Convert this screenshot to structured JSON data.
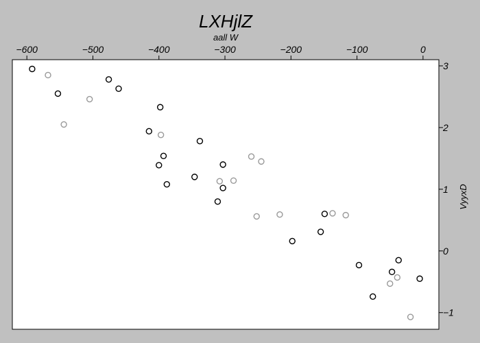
{
  "chart_data": {
    "type": "scatter",
    "title": "LXHjlZ",
    "xlabel": "aall W",
    "ylabel": "VyyxD",
    "xlim": [
      -622,
      24
    ],
    "ylim": [
      -1.27,
      3.1
    ],
    "x_ticks": [
      -600,
      -500,
      -400,
      -300,
      -200,
      -100,
      0
    ],
    "x_tick_labels": [
      "−600",
      "−500",
      "−400",
      "−300",
      "−200",
      "−100",
      "0"
    ],
    "y_ticks": [
      3,
      2,
      1,
      0,
      -1
    ],
    "y_tick_labels": [
      "3",
      "2",
      "1",
      "0",
      "−1"
    ],
    "x_axis_position": "top",
    "y_axis_position": "right",
    "grid": false,
    "legend": "none",
    "colors": {
      "background": "#c0c0c0",
      "plot_area": "#ffffff",
      "series_dark": "#000000",
      "series_light": "#999999"
    },
    "series": [
      {
        "color": "#000000",
        "points": [
          [
            -592,
            2.95
          ],
          [
            -553,
            2.55
          ],
          [
            -476,
            2.78
          ],
          [
            -461,
            2.63
          ],
          [
            -398,
            2.33
          ],
          [
            -415,
            1.94
          ],
          [
            -393,
            1.54
          ],
          [
            -400,
            1.39
          ],
          [
            -388,
            1.08
          ],
          [
            -338,
            1.78
          ],
          [
            -346,
            1.2
          ],
          [
            -303,
            1.4
          ],
          [
            -303,
            1.02
          ],
          [
            -311,
            0.8
          ],
          [
            -149,
            0.6
          ],
          [
            -198,
            0.16
          ],
          [
            -155,
            0.31
          ],
          [
            -97,
            -0.23
          ],
          [
            -37,
            -0.15
          ],
          [
            -47,
            -0.34
          ],
          [
            -5,
            -0.45
          ],
          [
            -76,
            -0.74
          ]
        ]
      },
      {
        "color": "#999999",
        "points": [
          [
            -568,
            2.85
          ],
          [
            -505,
            2.46
          ],
          [
            -544,
            2.05
          ],
          [
            -397,
            1.88
          ],
          [
            -260,
            1.53
          ],
          [
            -245,
            1.45
          ],
          [
            -308,
            1.13
          ],
          [
            -287,
            1.14
          ],
          [
            -252,
            0.56
          ],
          [
            -217,
            0.59
          ],
          [
            -137,
            0.61
          ],
          [
            -117,
            0.58
          ],
          [
            -39,
            -0.43
          ],
          [
            -50,
            -0.53
          ],
          [
            -19,
            -1.07
          ]
        ]
      }
    ]
  }
}
